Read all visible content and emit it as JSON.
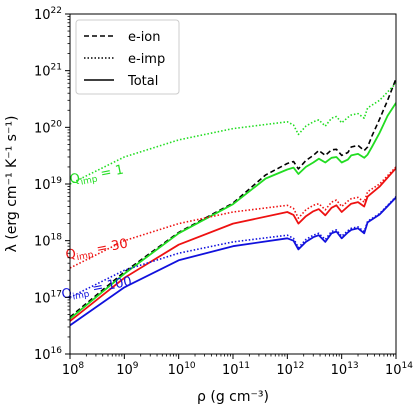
{
  "chart_data": {
    "type": "line",
    "title": "",
    "xlabel": "ρ (g cm⁻³)",
    "ylabel": "λ (erg cm⁻¹ K⁻¹ s⁻¹)",
    "xscale": "log",
    "yscale": "log",
    "xlim": [
      100000000.0,
      100000000000000.0
    ],
    "ylim": [
      1e+16,
      1e+22
    ],
    "x_ticks": [
      {
        "value": 100000000.0,
        "base": "10",
        "exp": "8"
      },
      {
        "value": 1000000000.0,
        "base": "10",
        "exp": "9"
      },
      {
        "value": 10000000000.0,
        "base": "10",
        "exp": "10"
      },
      {
        "value": 100000000000.0,
        "base": "10",
        "exp": "11"
      },
      {
        "value": 1000000000000.0,
        "base": "10",
        "exp": "12"
      },
      {
        "value": 10000000000000.0,
        "base": "10",
        "exp": "13"
      },
      {
        "value": 100000000000000.0,
        "base": "10",
        "exp": "14"
      }
    ],
    "y_ticks": [
      {
        "value": 1e+16,
        "base": "10",
        "exp": "16"
      },
      {
        "value": 1e+17,
        "base": "10",
        "exp": "17"
      },
      {
        "value": 1e+18,
        "base": "10",
        "exp": "18"
      },
      {
        "value": 1e+19,
        "base": "10",
        "exp": "19"
      },
      {
        "value": 1e+20,
        "base": "10",
        "exp": "20"
      },
      {
        "value": 1e+21,
        "base": "10",
        "exp": "21"
      },
      {
        "value": 1e+22,
        "base": "10",
        "exp": "22"
      }
    ],
    "legend": {
      "location": "top-left",
      "entries": [
        {
          "label": "e-ion",
          "style": "dashed"
        },
        {
          "label": "e-imp",
          "style": "dotted"
        },
        {
          "label": "Total",
          "style": "solid"
        }
      ]
    },
    "annotations": [
      {
        "prefix": "Q",
        "sub": "imp",
        "suffix": " = 1",
        "color": "#22dd22",
        "x": 320000000.0,
        "y": 1.25e+19,
        "rotation": -11
      },
      {
        "prefix": "Q",
        "sub": "imp",
        "suffix": " = 30",
        "color": "#ee1111",
        "x": 320000000.0,
        "y": 6e+17,
        "rotation": -11
      },
      {
        "prefix": "Q",
        "sub": "imp",
        "suffix": " = 100",
        "color": "#1111dd",
        "x": 320000000.0,
        "y": 1.25e+17,
        "rotation": -11
      }
    ],
    "series": [
      {
        "group": "Q=1",
        "kind": "e-ion",
        "color": "#000000",
        "style": "dashed",
        "x": [
          100000000.0,
          1000000000.0,
          10000000000.0,
          100000000000.0,
          400000000000.0,
          1000000000000.0,
          1300000000000.0,
          1600000000000.0,
          2200000000000.0,
          3000000000000.0,
          3800000000000.0,
          5000000000000.0,
          6500000000000.0,
          8000000000000.0,
          10000000000000.0,
          13000000000000.0,
          15000000000000.0,
          20000000000000.0,
          26000000000000.0,
          30000000000000.0,
          36000000000000.0,
          50000000000000.0,
          70000000000000.0,
          100000000000000.0
        ],
        "y": [
          4.5e+16,
          2.8e+17,
          1.4e+18,
          4.6e+18,
          1.45e+19,
          2.3e+19,
          2.5e+19,
          1.85e+19,
          2.6e+19,
          3.2e+19,
          3.9e+19,
          3.2e+19,
          4e+19,
          4.1e+19,
          3.2e+19,
          3.6e+19,
          4.5e+19,
          4.8e+19,
          3.9e+19,
          4.5e+19,
          7e+19,
          1.4e+20,
          3e+20,
          7.2e+20
        ]
      },
      {
        "group": "Q=1",
        "kind": "e-imp",
        "color": "#22dd22",
        "style": "dotted",
        "x": [
          100000000.0,
          1000000000.0,
          10000000000.0,
          100000000000.0,
          1000000000000.0,
          1300000000000.0,
          1600000000000.0,
          2200000000000.0,
          3000000000000.0,
          3800000000000.0,
          5000000000000.0,
          6500000000000.0,
          8000000000000.0,
          10000000000000.0,
          13000000000000.0,
          15000000000000.0,
          20000000000000.0,
          26000000000000.0,
          30000000000000.0,
          50000000000000.0,
          100000000000000.0
        ],
        "y": [
          1e+19,
          3e+19,
          6e+19,
          9.5e+19,
          1.25e+20,
          1.1e+20,
          7.5e+19,
          1.05e+20,
          1.25e+20,
          1.35e+20,
          1.05e+20,
          1.45e+20,
          1.55e+20,
          1.2e+20,
          1.5e+20,
          1.65e+20,
          1.75e+20,
          1.45e+20,
          2.2e+20,
          3e+20,
          6e+20
        ]
      },
      {
        "group": "Q=1",
        "kind": "Total",
        "color": "#22dd22",
        "style": "solid",
        "x": [
          100000000.0,
          1000000000.0,
          10000000000.0,
          100000000000.0,
          400000000000.0,
          1000000000000.0,
          1300000000000.0,
          1600000000000.0,
          2200000000000.0,
          3000000000000.0,
          3800000000000.0,
          5000000000000.0,
          6500000000000.0,
          8000000000000.0,
          10000000000000.0,
          13000000000000.0,
          15000000000000.0,
          20000000000000.0,
          26000000000000.0,
          30000000000000.0,
          36000000000000.0,
          50000000000000.0,
          70000000000000.0,
          100000000000000.0
        ],
        "y": [
          4.2e+16,
          2.6e+17,
          1.35e+18,
          4.4e+18,
          1.25e+19,
          1.8e+19,
          1.95e+19,
          1.5e+19,
          2e+19,
          2.4e+19,
          2.8e+19,
          2.4e+19,
          2.9e+19,
          3e+19,
          2.4e+19,
          2.7e+19,
          3.2e+19,
          3.4e+19,
          2.9e+19,
          3.3e+19,
          4.5e+19,
          8e+19,
          1.6e+20,
          2.7e+20
        ]
      },
      {
        "group": "Q=30",
        "kind": "e-imp",
        "color": "#ee1111",
        "style": "dotted",
        "x": [
          100000000.0,
          1000000000.0,
          10000000000.0,
          100000000000.0,
          1000000000000.0,
          1300000000000.0,
          1600000000000.0,
          2200000000000.0,
          3000000000000.0,
          3800000000000.0,
          5000000000000.0,
          6500000000000.0,
          8000000000000.0,
          10000000000000.0,
          13000000000000.0,
          15000000000000.0,
          20000000000000.0,
          26000000000000.0,
          30000000000000.0,
          50000000000000.0,
          100000000000000.0
        ],
        "y": [
          3.3e+17,
          1e+18,
          2e+18,
          3.2e+18,
          4.2e+18,
          3.7e+18,
          2.5e+18,
          3.5e+18,
          4.2e+18,
          4.5e+18,
          3.5e+18,
          4.8e+18,
          5.2e+18,
          4e+18,
          5e+18,
          5.5e+18,
          5.8e+18,
          4.8e+18,
          7.3e+18,
          1e+19,
          2e+19
        ]
      },
      {
        "group": "Q=30",
        "kind": "Total",
        "color": "#ee1111",
        "style": "solid",
        "x": [
          100000000.0,
          1000000000.0,
          10000000000.0,
          100000000000.0,
          1000000000000.0,
          1300000000000.0,
          1600000000000.0,
          2200000000000.0,
          3000000000000.0,
          3800000000000.0,
          5000000000000.0,
          6500000000000.0,
          8000000000000.0,
          10000000000000.0,
          13000000000000.0,
          15000000000000.0,
          20000000000000.0,
          26000000000000.0,
          30000000000000.0,
          50000000000000.0,
          100000000000000.0
        ],
        "y": [
          3.8e+16,
          2.2e+17,
          8.5e+17,
          2e+18,
          3.2e+18,
          2.85e+18,
          2e+18,
          2.7e+18,
          3.3e+18,
          3.6e+18,
          2.8e+18,
          3.8e+18,
          4.2e+18,
          3.2e+18,
          4e+18,
          4.5e+18,
          4.8e+18,
          4e+18,
          6e+18,
          9e+18,
          1.9e+19
        ]
      },
      {
        "group": "Q=100",
        "kind": "e-imp",
        "color": "#1111dd",
        "style": "dotted",
        "x": [
          100000000.0,
          1000000000.0,
          10000000000.0,
          100000000000.0,
          1000000000000.0,
          1300000000000.0,
          1600000000000.0,
          2200000000000.0,
          3000000000000.0,
          3800000000000.0,
          5000000000000.0,
          6500000000000.0,
          8000000000000.0,
          10000000000000.0,
          13000000000000.0,
          15000000000000.0,
          20000000000000.0,
          26000000000000.0,
          30000000000000.0,
          50000000000000.0,
          100000000000000.0
        ],
        "y": [
          1e+17,
          3e+17,
          6e+17,
          9.5e+17,
          1.25e+18,
          1.1e+18,
          7.5e+17,
          1.05e+18,
          1.25e+18,
          1.35e+18,
          1.05e+18,
          1.45e+18,
          1.55e+18,
          1.2e+18,
          1.5e+18,
          1.65e+18,
          1.75e+18,
          1.45e+18,
          2.2e+18,
          3e+18,
          6e+18
        ]
      },
      {
        "group": "Q=100",
        "kind": "Total",
        "color": "#1111dd",
        "style": "solid",
        "x": [
          100000000.0,
          1000000000.0,
          10000000000.0,
          100000000000.0,
          1000000000000.0,
          1300000000000.0,
          1600000000000.0,
          2200000000000.0,
          3000000000000.0,
          3800000000000.0,
          5000000000000.0,
          6500000000000.0,
          8000000000000.0,
          10000000000000.0,
          13000000000000.0,
          15000000000000.0,
          20000000000000.0,
          26000000000000.0,
          30000000000000.0,
          50000000000000.0,
          100000000000000.0
        ],
        "y": [
          3.2e+16,
          1.5e+17,
          4.5e+17,
          8e+17,
          1.1e+18,
          1e+18,
          7e+17,
          9.5e+17,
          1.15e+18,
          1.25e+18,
          9.5e+17,
          1.35e+18,
          1.45e+18,
          1.1e+18,
          1.4e+18,
          1.55e+18,
          1.65e+18,
          1.35e+18,
          2.1e+18,
          2.9e+18,
          5.8e+18
        ]
      }
    ]
  }
}
